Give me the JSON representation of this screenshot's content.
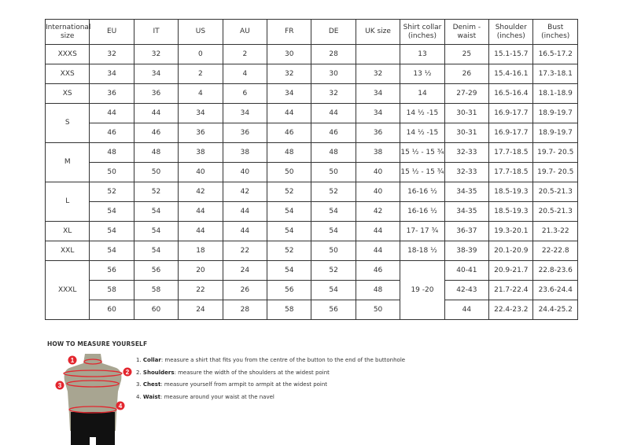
{
  "headers": [
    "International size",
    "EU",
    "IT",
    "US",
    "AU",
    "FR",
    "DE",
    "UK size",
    "Shirt collar (inches)",
    "Denim - waist",
    "Shoulder (inches)",
    "Bust (inches)"
  ],
  "groups": [
    {
      "size": "XXXS",
      "rows": [
        [
          "32",
          "32",
          "0",
          "2",
          "30",
          "28",
          "",
          "13",
          "25",
          "15.1-15.7",
          "16.5-17.2"
        ]
      ]
    },
    {
      "size": "XXS",
      "rows": [
        [
          "34",
          "34",
          "2",
          "4",
          "32",
          "30",
          "32",
          "13 ½",
          "26",
          "15.4-16.1",
          "17.3-18.1"
        ]
      ]
    },
    {
      "size": "XS",
      "rows": [
        [
          "36",
          "36",
          "4",
          "6",
          "34",
          "32",
          "34",
          "14",
          "27-29",
          "16.5-16.4",
          "18.1-18.9"
        ]
      ]
    },
    {
      "size": "S",
      "rows": [
        [
          "44",
          "44",
          "34",
          "34",
          "44",
          "44",
          "34",
          "14 ½ -15",
          "30-31",
          "16.9-17.7",
          "18.9-19.7"
        ],
        [
          "46",
          "46",
          "36",
          "36",
          "46",
          "46",
          "36",
          "14 ½ -15",
          "30-31",
          "16.9-17.7",
          "18.9-19.7"
        ]
      ]
    },
    {
      "size": "M",
      "rows": [
        [
          "48",
          "48",
          "38",
          "38",
          "48",
          "48",
          "38",
          "15 ½ - 15 ¾",
          "32-33",
          "17.7-18.5",
          "19.7- 20.5"
        ],
        [
          "50",
          "50",
          "40",
          "40",
          "50",
          "50",
          "40",
          "15 ½ - 15 ¾",
          "32-33",
          "17.7-18.5",
          "19.7- 20.5"
        ]
      ]
    },
    {
      "size": "L",
      "rows": [
        [
          "52",
          "52",
          "42",
          "42",
          "52",
          "52",
          "40",
          "16-16 ½",
          "34-35",
          "18.5-19.3",
          "20.5-21.3"
        ],
        [
          "54",
          "54",
          "44",
          "44",
          "54",
          "54",
          "42",
          "16-16 ½",
          "34-35",
          "18.5-19.3",
          "20.5-21.3"
        ]
      ]
    },
    {
      "size": "XL",
      "rows": [
        [
          "54",
          "54",
          "44",
          "44",
          "54",
          "54",
          "44",
          "17- 17 ¾",
          "36-37",
          "19.3-20.1",
          "21.3-22"
        ]
      ]
    },
    {
      "size": "XXL",
      "rows": [
        [
          "54",
          "54",
          "18",
          "22",
          "52",
          "50",
          "44",
          "18-18 ½",
          "38-39",
          "20.1-20.9",
          "22-22.8"
        ]
      ]
    },
    {
      "size": "XXXL",
      "collar": "19 -20",
      "rows": [
        [
          "56",
          "56",
          "20",
          "24",
          "54",
          "52",
          "46",
          null,
          "40-41",
          "20.9-21.7",
          "22.8-23.6"
        ],
        [
          "58",
          "58",
          "22",
          "26",
          "56",
          "54",
          "48",
          null,
          "42-43",
          "21.7-22.4",
          "23.6-24.4"
        ],
        [
          "60",
          "60",
          "24",
          "28",
          "58",
          "56",
          "50",
          null,
          "44",
          "22.4-23.2",
          "24.4-25.2"
        ]
      ]
    }
  ],
  "howto": {
    "title": "HOW TO MEASURE YOURSELF",
    "steps": [
      {
        "num": "1.",
        "term": "Collar",
        "text": ": measure a shirt that fits you from the centre of the button to the end of the buttonhole"
      },
      {
        "num": "2.",
        "term": "Shoulders",
        "text": ": measure the width of the shoulders at the widest point"
      },
      {
        "num": "3.",
        "term": "Chest",
        "text": ": measure yourself from armpit to armpit at the widest point"
      },
      {
        "num": "4.",
        "term": "Waist",
        "text": ": measure around your waist at the navel"
      }
    ],
    "markers": [
      "1",
      "2",
      "3",
      "4"
    ]
  },
  "colors": {
    "accent": "#e3262e",
    "torso": "#a8a591",
    "shorts": "#111111"
  }
}
